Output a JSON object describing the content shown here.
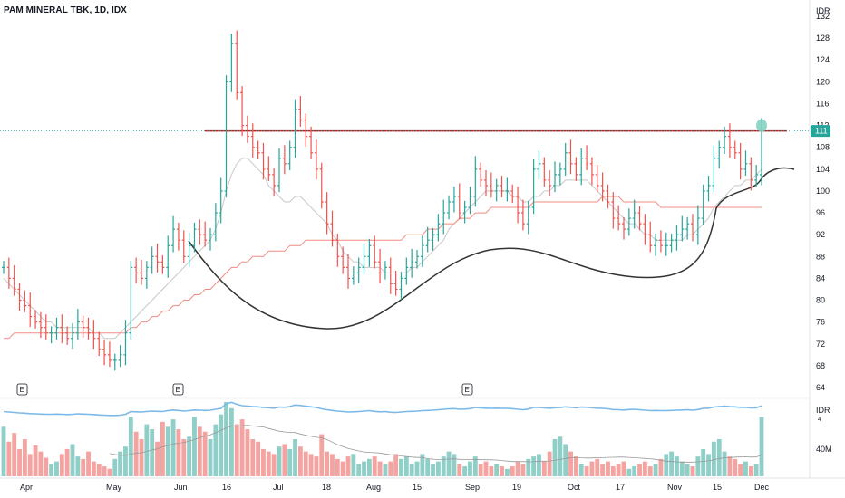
{
  "header": {
    "title": "PAM MINERAL TBK, 1D, IDX"
  },
  "axes": {
    "currency_label": "IDR",
    "indicator_currency_label": "IDR",
    "price_ticks": [
      "132",
      "128",
      "124",
      "120",
      "116",
      "112",
      "108",
      "104",
      "100",
      "96",
      "92",
      "88",
      "84",
      "80",
      "76",
      "72",
      "68",
      "64"
    ],
    "volume_tick_label": "40M",
    "indicator_small_label": "4",
    "last_price_label": "111"
  },
  "colors": {
    "up": "#26a69a",
    "down": "#ef5350",
    "vol_up": "#8fcfc8",
    "vol_down": "#f5a3a1",
    "resistance": "#b22222",
    "ma_fast": "#c8c8c8",
    "ma_slow": "#f28b82",
    "pattern": "#333333",
    "indicator_line": "#7cb9e8",
    "volume_ma": "#999999",
    "marker": "#7fcfc0"
  },
  "chart_data": {
    "type": "ohlc",
    "title": "PAM MINERAL TBK, 1D, IDX",
    "y_axis_label": "IDR",
    "ylim": [
      60,
      135
    ],
    "x_tick_labels": [
      "Apr",
      "May",
      "Jun",
      "16",
      "Jul",
      "18",
      "Aug",
      "15",
      "Sep",
      "19",
      "Oct",
      "17",
      "Nov",
      "15",
      "Dec"
    ],
    "earnings_markers": [
      "E",
      "E",
      "E"
    ],
    "resistance_level": 111,
    "last_price": 111,
    "series": [
      {
        "name": "close",
        "values": [
          86,
          84,
          82,
          80,
          79,
          77,
          76,
          75,
          74,
          74,
          75,
          74,
          73,
          74,
          76,
          75,
          74,
          73,
          71,
          70,
          69,
          69,
          70,
          74,
          86,
          85,
          84,
          86,
          88,
          87,
          86,
          90,
          93,
          91,
          88,
          90,
          93,
          92,
          91,
          92,
          96,
          100,
          120,
          127,
          118,
          112,
          110,
          108,
          107,
          104,
          103,
          101,
          106,
          105,
          108,
          115,
          113,
          110,
          107,
          104,
          98,
          94,
          91,
          88,
          86,
          84,
          85,
          86,
          88,
          90,
          87,
          85,
          86,
          83,
          82,
          84,
          86,
          87,
          88,
          90,
          91,
          92,
          94,
          96,
          98,
          99,
          96,
          97,
          99,
          104,
          102,
          101,
          100,
          101,
          100,
          100,
          99,
          96,
          94,
          97,
          104,
          105,
          102,
          101,
          103,
          104,
          107,
          105,
          103,
          106,
          105,
          103,
          101,
          100,
          98,
          95,
          94,
          93,
          95,
          96,
          94,
          92,
          90,
          91,
          90,
          90,
          91,
          92,
          93,
          94,
          92,
          95,
          100,
          101,
          106,
          108,
          110,
          108,
          107,
          104,
          105,
          102,
          103,
          111
        ]
      },
      {
        "name": "volume",
        "values": [
          40,
          28,
          35,
          22,
          30,
          18,
          25,
          20,
          15,
          10,
          12,
          18,
          22,
          26,
          16,
          14,
          20,
          12,
          10,
          8,
          6,
          14,
          20,
          24,
          48,
          36,
          30,
          42,
          38,
          28,
          44,
          40,
          46,
          38,
          30,
          32,
          48,
          40,
          36,
          30,
          42,
          50,
          60,
          55,
          42,
          46,
          38,
          30,
          28,
          22,
          20,
          18,
          24,
          26,
          22,
          30,
          24,
          20,
          18,
          16,
          34,
          20,
          18,
          14,
          12,
          16,
          18,
          10,
          12,
          14,
          16,
          12,
          10,
          12,
          18,
          14,
          16,
          10,
          12,
          18,
          14,
          10,
          12,
          16,
          20,
          18,
          10,
          8,
          12,
          16,
          10,
          12,
          8,
          10,
          8,
          6,
          8,
          12,
          10,
          14,
          16,
          18,
          12,
          20,
          30,
          32,
          26,
          20,
          16,
          10,
          8,
          12,
          14,
          10,
          12,
          8,
          10,
          12,
          6,
          8,
          10,
          12,
          8,
          10,
          14,
          18,
          20,
          16,
          12,
          10,
          8,
          16,
          22,
          18,
          28,
          30,
          20,
          16,
          14,
          10,
          12,
          8,
          10,
          48
        ]
      },
      {
        "name": "ma_fast",
        "values": [
          84,
          83,
          82,
          81,
          80,
          79,
          78,
          77,
          76,
          76,
          75,
          75,
          75,
          75,
          75,
          75,
          75,
          74,
          74,
          73,
          73,
          73,
          74,
          75,
          76,
          77,
          78,
          79,
          80,
          81,
          82,
          83,
          84,
          85,
          86,
          87,
          88,
          89,
          90,
          91,
          93,
          96,
          100,
          103,
          105,
          106,
          106,
          105,
          104,
          103,
          101,
          100,
          99,
          98,
          98,
          99,
          99,
          98,
          97,
          96,
          95,
          94,
          92,
          91,
          89,
          88,
          87,
          87,
          86,
          86,
          86,
          86,
          85,
          85,
          85,
          85,
          85,
          86,
          86,
          87,
          88,
          89,
          90,
          91,
          93,
          94,
          95,
          96,
          97,
          98,
          99,
          100,
          100,
          100,
          100,
          100,
          99,
          99,
          98,
          98,
          99,
          99,
          100,
          100,
          101,
          101,
          102,
          102,
          102,
          102,
          102,
          101,
          100,
          99,
          98,
          97,
          96,
          95,
          94,
          94,
          93,
          92,
          92,
          91,
          91,
          91,
          91,
          91,
          91,
          92,
          92,
          93,
          94,
          95,
          97,
          98,
          99,
          100,
          101,
          101,
          102,
          102,
          103,
          104
        ]
      },
      {
        "name": "ma_slow",
        "values": [
          73,
          73,
          74,
          74,
          74,
          74,
          74,
          74,
          74,
          74,
          74,
          74,
          74,
          74,
          74,
          74,
          74,
          74,
          74,
          74,
          74,
          74,
          74,
          74,
          75,
          75,
          76,
          76,
          77,
          77,
          78,
          78,
          79,
          79,
          80,
          80,
          81,
          81,
          82,
          82,
          83,
          84,
          85,
          86,
          86,
          87,
          87,
          88,
          88,
          88,
          89,
          89,
          89,
          89,
          90,
          90,
          90,
          91,
          91,
          91,
          91,
          91,
          91,
          91,
          91,
          91,
          91,
          91,
          91,
          91,
          91,
          91,
          91,
          91,
          91,
          91,
          92,
          92,
          92,
          92,
          93,
          93,
          93,
          94,
          94,
          94,
          95,
          95,
          95,
          96,
          96,
          96,
          97,
          97,
          97,
          97,
          97,
          97,
          97,
          97,
          98,
          98,
          98,
          98,
          98,
          98,
          98,
          98,
          98,
          98,
          98,
          98,
          98,
          99,
          99,
          99,
          99,
          98,
          98,
          98,
          98,
          98,
          98,
          98,
          97,
          97,
          97,
          97,
          97,
          97,
          97,
          97,
          97,
          97,
          97,
          97,
          97,
          97,
          97,
          97,
          97,
          97,
          97,
          97
        ]
      }
    ]
  }
}
